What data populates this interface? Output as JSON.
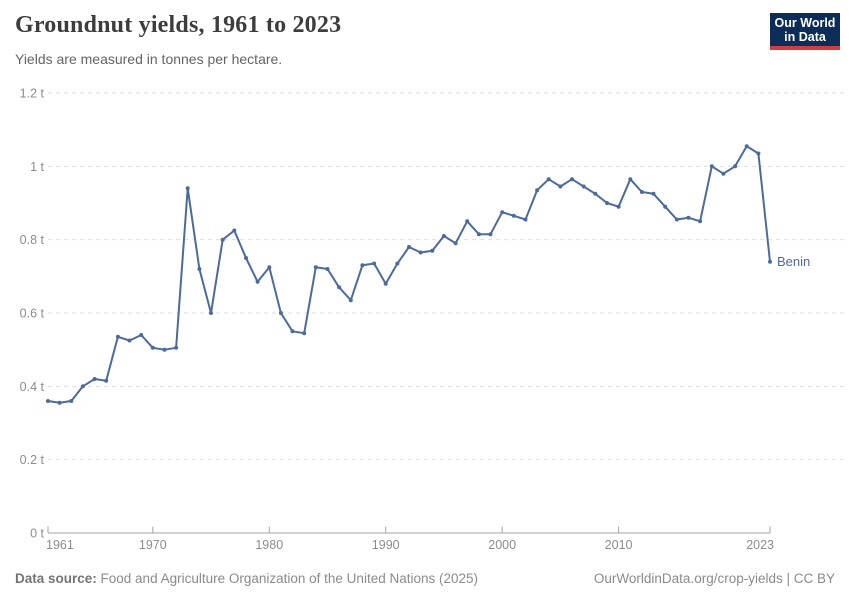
{
  "header": {
    "title": "Groundnut yields, 1961 to 2023",
    "subtitle": "Yields are measured in tonnes per hectare."
  },
  "logo": {
    "line1": "Our World",
    "line2": "in Data",
    "bg_color": "#0d2d59",
    "bar_color": "#d13c3f"
  },
  "chart_data": {
    "type": "line",
    "title": "Groundnut yields, 1961 to 2023",
    "unit": "tonnes per hectare",
    "x": [
      1961,
      1962,
      1963,
      1964,
      1965,
      1966,
      1967,
      1968,
      1969,
      1970,
      1971,
      1972,
      1973,
      1974,
      1975,
      1976,
      1977,
      1978,
      1979,
      1980,
      1981,
      1982,
      1983,
      1984,
      1985,
      1986,
      1987,
      1988,
      1989,
      1990,
      1991,
      1992,
      1993,
      1994,
      1995,
      1996,
      1997,
      1998,
      1999,
      2000,
      2001,
      2002,
      2003,
      2004,
      2005,
      2006,
      2007,
      2008,
      2009,
      2010,
      2011,
      2012,
      2013,
      2014,
      2015,
      2016,
      2017,
      2018,
      2019,
      2020,
      2021,
      2022,
      2023
    ],
    "series": [
      {
        "name": "Benin",
        "color": "#4c6a9c",
        "values": [
          0.36,
          0.355,
          0.36,
          0.4,
          0.42,
          0.415,
          0.535,
          0.525,
          0.54,
          0.505,
          0.5,
          0.505,
          0.94,
          0.72,
          0.6,
          0.8,
          0.825,
          0.75,
          0.685,
          0.725,
          0.6,
          0.55,
          0.545,
          0.725,
          0.72,
          0.67,
          0.635,
          0.73,
          0.735,
          0.68,
          0.735,
          0.78,
          0.765,
          0.77,
          0.81,
          0.79,
          0.85,
          0.815,
          0.815,
          0.875,
          0.865,
          0.855,
          0.935,
          0.965,
          0.945,
          0.965,
          0.945,
          0.925,
          0.9,
          0.89,
          0.965,
          0.93,
          0.925,
          0.89,
          0.855,
          0.86,
          0.85,
          1.0,
          0.98,
          1.0,
          1.055,
          1.035,
          0.74
        ]
      }
    ],
    "xlim": [
      1961,
      2023
    ],
    "ylim": [
      0,
      1.2
    ],
    "yticks": [
      {
        "value": 0,
        "label": "0 t"
      },
      {
        "value": 0.2,
        "label": "0.2 t"
      },
      {
        "value": 0.4,
        "label": "0.4 t"
      },
      {
        "value": 0.6,
        "label": "0.6 t"
      },
      {
        "value": 0.8,
        "label": "0.8 t"
      },
      {
        "value": 1,
        "label": "1 t"
      },
      {
        "value": 1.2,
        "label": "1.2 t"
      }
    ],
    "xticks": [
      {
        "year": 1961,
        "label": "1961",
        "anchor": "start"
      },
      {
        "year": 1970,
        "label": "1970",
        "anchor": "middle"
      },
      {
        "year": 1980,
        "label": "1980",
        "anchor": "middle"
      },
      {
        "year": 1990,
        "label": "1990",
        "anchor": "middle"
      },
      {
        "year": 2000,
        "label": "2000",
        "anchor": "middle"
      },
      {
        "year": 2010,
        "label": "2010",
        "anchor": "middle"
      },
      {
        "year": 2023,
        "label": "2023",
        "anchor": "end"
      }
    ],
    "grid": "horizontal-dashed",
    "legend": "end-of-line-label"
  },
  "footer": {
    "source_label": "Data source:",
    "source_value": " Food and Agriculture Organization of the United Nations (2025)",
    "credit": "OurWorldinData.org/crop-yields | CC BY"
  },
  "colors": {
    "grid": "#dddddd",
    "axis": "#a3a3a3",
    "tick_text": "#8c8c8c",
    "line": "#4c6a9c"
  }
}
